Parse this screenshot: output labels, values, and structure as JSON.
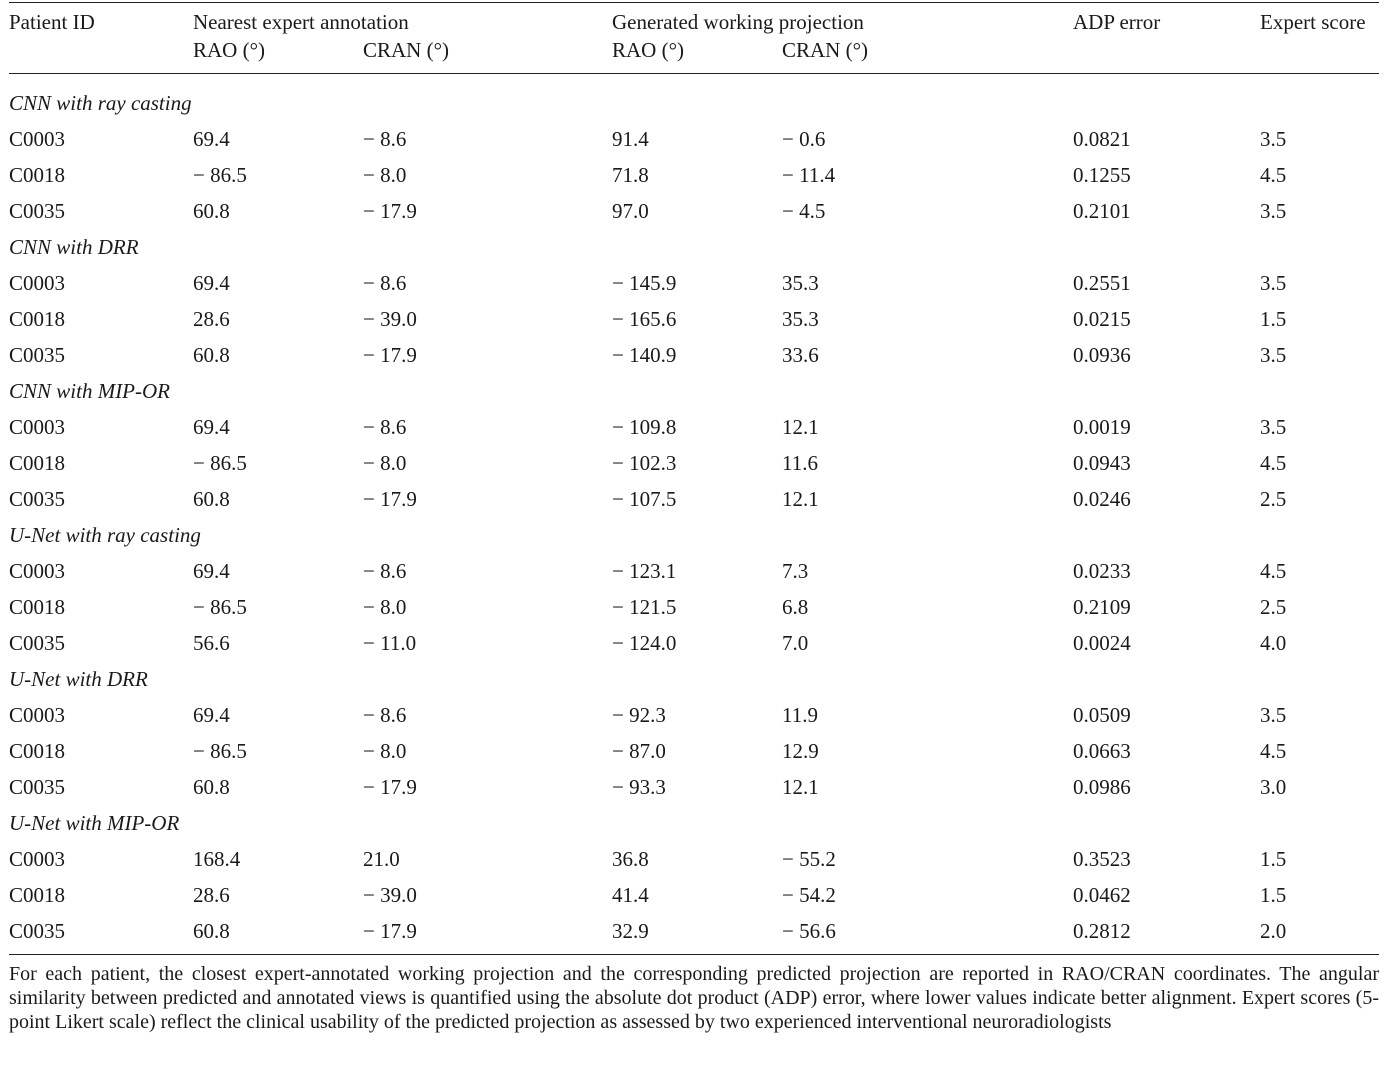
{
  "header": {
    "patient_id": "Patient ID",
    "group_expert": "Nearest expert annotation",
    "group_generated": "Generated working projection",
    "adp_error": "ADP error",
    "expert_score": "Expert score",
    "rao": "RAO (°)",
    "cran": "CRAN (°)"
  },
  "sections": [
    {
      "title": "CNN with ray casting",
      "rows": [
        [
          "C0003",
          "69.4",
          "− 8.6",
          "91.4",
          "− 0.6",
          "0.0821",
          "3.5"
        ],
        [
          "C0018",
          "− 86.5",
          "− 8.0",
          "71.8",
          "− 11.4",
          "0.1255",
          "4.5"
        ],
        [
          "C0035",
          "60.8",
          "− 17.9",
          "97.0",
          "− 4.5",
          "0.2101",
          "3.5"
        ]
      ]
    },
    {
      "title": "CNN with DRR",
      "rows": [
        [
          "C0003",
          "69.4",
          "− 8.6",
          "− 145.9",
          "35.3",
          "0.2551",
          "3.5"
        ],
        [
          "C0018",
          "28.6",
          "− 39.0",
          "− 165.6",
          "35.3",
          "0.0215",
          "1.5"
        ],
        [
          "C0035",
          "60.8",
          "− 17.9",
          "− 140.9",
          "33.6",
          "0.0936",
          "3.5"
        ]
      ]
    },
    {
      "title": "CNN with MIP-OR",
      "rows": [
        [
          "C0003",
          "69.4",
          "− 8.6",
          "− 109.8",
          "12.1",
          "0.0019",
          "3.5"
        ],
        [
          "C0018",
          "− 86.5",
          "− 8.0",
          "− 102.3",
          "11.6",
          "0.0943",
          "4.5"
        ],
        [
          "C0035",
          "60.8",
          "− 17.9",
          "− 107.5",
          "12.1",
          "0.0246",
          "2.5"
        ]
      ]
    },
    {
      "title": "U-Net with ray casting",
      "rows": [
        [
          "C0003",
          "69.4",
          "− 8.6",
          "− 123.1",
          "7.3",
          "0.0233",
          "4.5"
        ],
        [
          "C0018",
          "− 86.5",
          "− 8.0",
          "− 121.5",
          "6.8",
          "0.2109",
          "2.5"
        ],
        [
          "C0035",
          "56.6",
          "− 11.0",
          "− 124.0",
          "7.0",
          "0.0024",
          "4.0"
        ]
      ]
    },
    {
      "title": "U-Net with DRR",
      "rows": [
        [
          "C0003",
          "69.4",
          "− 8.6",
          "− 92.3",
          "11.9",
          "0.0509",
          "3.5"
        ],
        [
          "C0018",
          "− 86.5",
          "− 8.0",
          "− 87.0",
          "12.9",
          "0.0663",
          "4.5"
        ],
        [
          "C0035",
          "60.8",
          "− 17.9",
          "− 93.3",
          "12.1",
          "0.0986",
          "3.0"
        ]
      ]
    },
    {
      "title": "U-Net with MIP-OR",
      "rows": [
        [
          "C0003",
          "168.4",
          "21.0",
          "36.8",
          "− 55.2",
          "0.3523",
          "1.5"
        ],
        [
          "C0018",
          "28.6",
          "− 39.0",
          "41.4",
          "− 54.2",
          "0.0462",
          "1.5"
        ],
        [
          "C0035",
          "60.8",
          "− 17.9",
          "32.9",
          "− 56.6",
          "0.2812",
          "2.0"
        ]
      ]
    }
  ],
  "caption": "For each patient, the closest expert-annotated working projection and the corresponding predicted projection are reported in RAO/CRAN coordinates. The angular similarity between predicted and annotated views is quantified using the absolute dot product (ADP) error, where lower values indicate better alignment. Expert scores (5-point Likert scale) reflect the clinical usability of the predicted projection as assessed by two experienced interventional neuroradiologists"
}
